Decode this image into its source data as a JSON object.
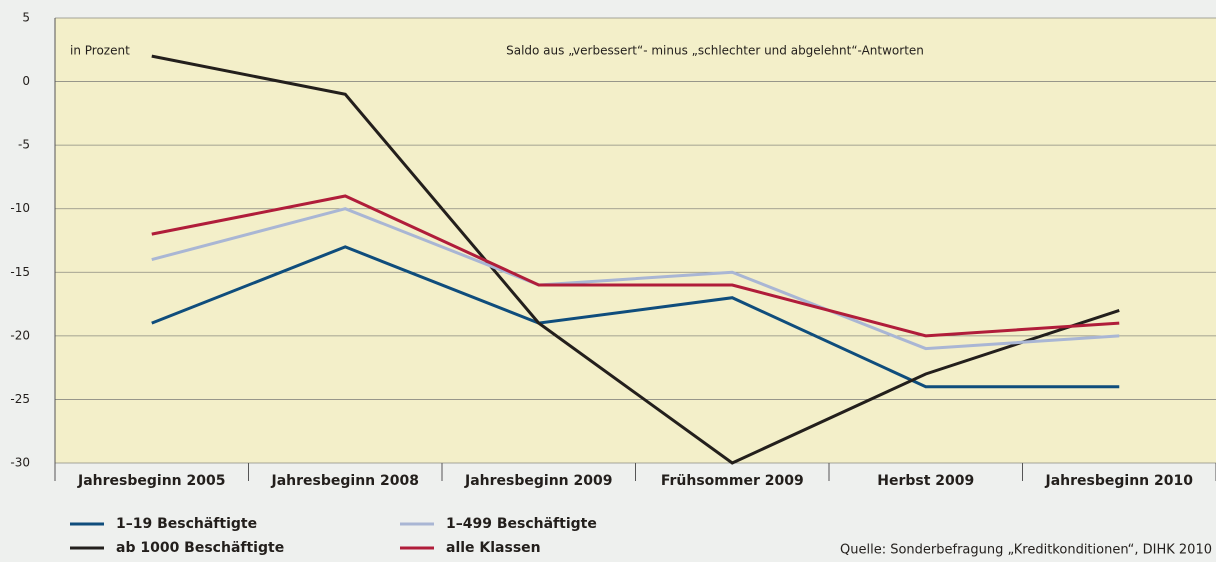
{
  "chart_data": {
    "type": "line",
    "annotations": {
      "unit": "in Prozent",
      "subtitle": "Saldo aus „verbessert“- minus „schlechter und abgelehnt“-Antworten",
      "source": "Quelle: Sonderbefragung „Kreditkonditionen“, DIHK 2010"
    },
    "categories": [
      "Jahresbeginn  2005",
      "Jahresbeginn  2008",
      "Jahresbeginn  2009",
      "Frühsommer 2009",
      "Herbst 2009",
      "Jahresbeginn 2010"
    ],
    "series": [
      {
        "name": "1–19 Beschäftigte",
        "color": "#0f4d7c",
        "values": [
          -19,
          -13,
          -19,
          -17,
          -24,
          -24
        ]
      },
      {
        "name": "ab 1000 Beschäftigte",
        "color": "#231f1c",
        "values": [
          2,
          -1,
          -19,
          -30,
          -23,
          -18
        ]
      },
      {
        "name": "1–499 Beschäftigte",
        "color": "#a9b6d4",
        "values": [
          -14,
          -10,
          -16,
          -15,
          -21,
          -20
        ]
      },
      {
        "name": "alle Klassen",
        "color": "#b01d3a",
        "values": [
          -12,
          -9,
          -16,
          -16,
          -20,
          -19
        ]
      }
    ],
    "ylim": [
      -30,
      5
    ],
    "yticks": [
      -30,
      -25,
      -20,
      -15,
      -10,
      -5,
      0,
      5
    ],
    "grid": true
  }
}
